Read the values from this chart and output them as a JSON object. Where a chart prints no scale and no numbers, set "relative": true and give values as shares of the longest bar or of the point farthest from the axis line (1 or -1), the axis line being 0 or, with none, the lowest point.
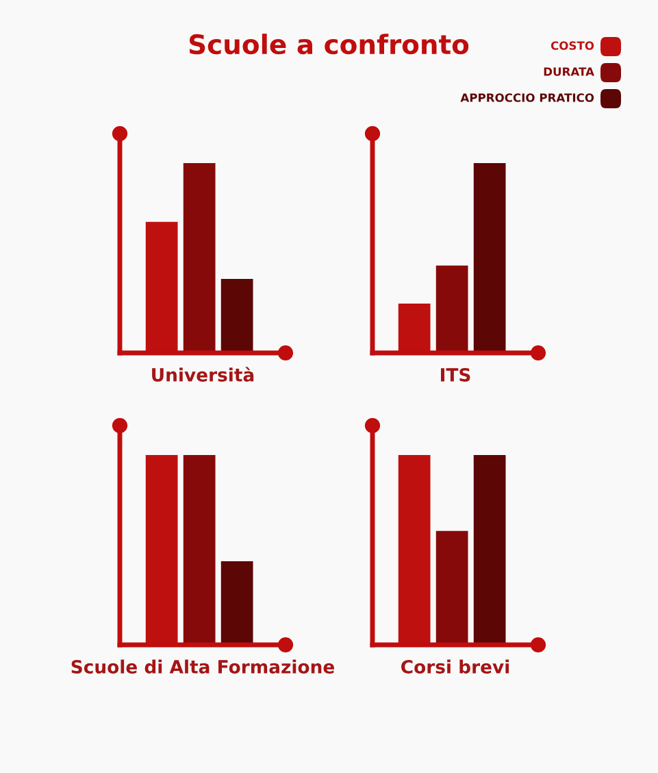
{
  "chart_data": [
    {
      "type": "bar",
      "title": "Scuole a confronto",
      "xlabel": "Università",
      "relative": true,
      "legend": "top right",
      "categories": [
        null
      ],
      "series": [
        {
          "name": "COSTO",
          "color": "#bf1010",
          "values": [
            0.69
          ]
        },
        {
          "name": "DURATA",
          "color": "#870a0a",
          "values": [
            1
          ]
        },
        {
          "name": "APPROCCIO PRATICO",
          "color": "#5c0606",
          "values": [
            0.39
          ]
        }
      ]
    },
    {
      "type": "bar",
      "xlabel": "ITS",
      "relative": true,
      "categories": [
        null
      ],
      "series": [
        {
          "color": "#bf1010",
          "values": [
            0.26
          ]
        },
        {
          "color": "#870a0a",
          "values": [
            0.46
          ]
        },
        {
          "color": "#5c0606",
          "values": [
            1
          ]
        }
      ]
    },
    {
      "type": "bar",
      "xlabel": "Scuole di Alta Formazione",
      "relative": true,
      "categories": [
        null
      ],
      "series": [
        {
          "color": "#bf1010",
          "values": [
            1
          ]
        },
        {
          "color": "#870a0a",
          "values": [
            1
          ]
        },
        {
          "color": "#5c0606",
          "values": [
            0.44
          ]
        }
      ]
    },
    {
      "type": "bar",
      "xlabel": "Corsi brevi",
      "relative": true,
      "categories": [
        null
      ],
      "series": [
        {
          "color": "#bf1010",
          "values": [
            1
          ]
        },
        {
          "color": "#870a0a",
          "values": [
            0.6
          ]
        },
        {
          "color": "#5c0606",
          "values": [
            1
          ]
        }
      ]
    }
  ]
}
